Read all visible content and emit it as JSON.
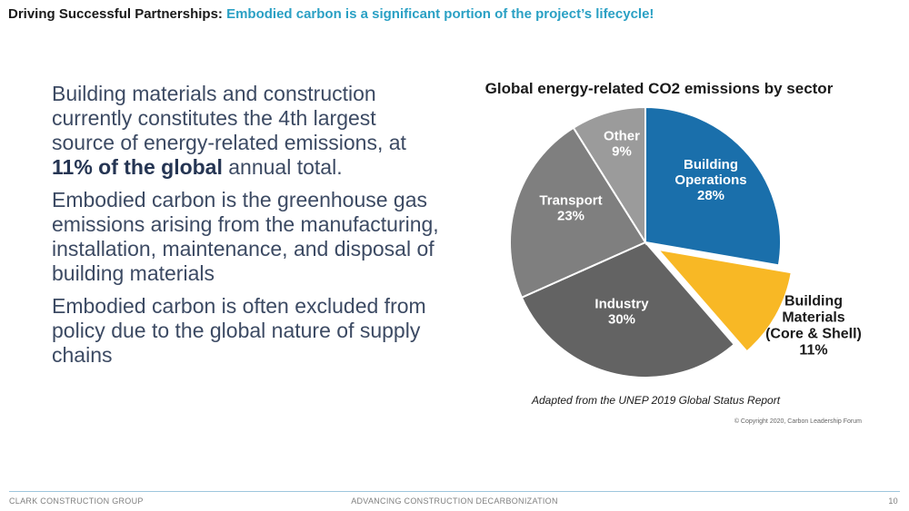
{
  "header": {
    "lead": "Driving Successful Partnerships:",
    "highlight": "Embodied carbon is a significant portion of the project’s lifecycle!"
  },
  "body": {
    "p1_start": "Building materials and construction currently constitutes the 4th largest source of energy-related emissions, at ",
    "p1_bold": "11% of the global",
    "p1_end": " annual total.",
    "p2": "Embodied carbon is the greenhouse gas emissions arising from the manufacturing, installation, maintenance, and disposal of building materials",
    "p3": "Embodied carbon is often excluded from policy due to the global nature of supply chains"
  },
  "chart_data": {
    "type": "pie",
    "title": "Global energy-related CO2 emissions by sector",
    "slices": [
      {
        "name": "Building Operations",
        "label_lines": [
          "Building",
          "Operations"
        ],
        "value": 28,
        "value_label": "28%",
        "color": "#1a6fab",
        "exploded": false
      },
      {
        "name": "Building Materials (Core & Shell)",
        "label_lines": [
          "Building",
          "Materials",
          "(Core & Shell)"
        ],
        "value": 11,
        "value_label": "11%",
        "color": "#f8b825",
        "exploded": true
      },
      {
        "name": "Industry",
        "label_lines": [
          "Industry"
        ],
        "value": 30,
        "value_label": "30%",
        "color": "#636363",
        "exploded": false
      },
      {
        "name": "Transport",
        "label_lines": [
          "Transport"
        ],
        "value": 23,
        "value_label": "23%",
        "color": "#7f7f7f",
        "exploded": false
      },
      {
        "name": "Other",
        "label_lines": [
          "Other"
        ],
        "value": 9,
        "value_label": "9%",
        "color": "#9b9b9b",
        "exploded": false
      }
    ],
    "source": "Adapted from the UNEP 2019 Global Status Report",
    "copyright": "© Copyright 2020, Carbon Leadership Forum"
  },
  "footer": {
    "company": "CLARK CONSTRUCTION GROUP",
    "tagline": "ADVANCING CONSTRUCTION DECARBONIZATION",
    "page_number": "10"
  }
}
